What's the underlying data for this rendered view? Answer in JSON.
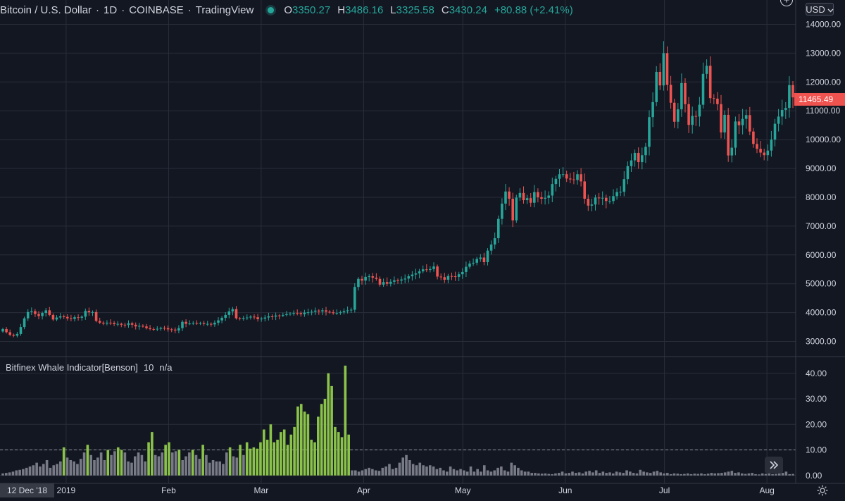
{
  "header": {
    "symbol": "Bitcoin / U.S. Dollar",
    "interval": "1D",
    "exchange": "COINBASE",
    "source": "TradingView",
    "ohlc": {
      "o_label": "O",
      "o_value": "3350.27",
      "h_label": "H",
      "h_value": "3486.16",
      "l_label": "L",
      "l_value": "3325.58",
      "c_label": "C",
      "c_value": "3430.24",
      "change": "+80.88 (+2.41%)"
    }
  },
  "currency_button": {
    "label": "USD",
    "icon": "chevron-down-icon"
  },
  "plus_button": {
    "icon": "plus-icon"
  },
  "indicator": {
    "name": "Bitfinex Whale Indicator[Benson]",
    "param": "10",
    "value": "n/a"
  },
  "last_price_tag": "11465.49",
  "crosshair_date": "12 Dec '18",
  "colors": {
    "up": "#26a69a",
    "down": "#ef5350",
    "background": "#131722",
    "grid": "#2a2e39",
    "vol_gray": "#787b86",
    "vol_green": "#8bc34a"
  },
  "chart_data": [
    {
      "type": "candlestick",
      "title": "Bitcoin / U.S. Dollar",
      "ylim": [
        2500,
        14500
      ],
      "yticks": [
        3000,
        4000,
        5000,
        6000,
        7000,
        8000,
        9000,
        10000,
        11000,
        12000,
        13000,
        14000
      ],
      "ytick_labels": [
        "3000.00",
        "4000.00",
        "5000.00",
        "6000.00",
        "7000.00",
        "8000.00",
        "9000.00",
        "10000.00",
        "11000.00",
        "12000.00",
        "13000.00",
        "14000.00"
      ],
      "x_start": "2018-12-12",
      "x_end": "2019-08-08",
      "xtick_labels": [
        {
          "date": "2019-01-01",
          "label": "2019"
        },
        {
          "date": "2019-02-01",
          "label": "Feb"
        },
        {
          "date": "2019-03-01",
          "label": "Mar"
        },
        {
          "date": "2019-04-01",
          "label": "Apr"
        },
        {
          "date": "2019-05-01",
          "label": "May"
        },
        {
          "date": "2019-06-01",
          "label": "Jun"
        },
        {
          "date": "2019-07-01",
          "label": "Jul"
        },
        {
          "date": "2019-08-01",
          "label": "Aug"
        }
      ],
      "close_series": [
        3430,
        3320,
        3230,
        3200,
        3260,
        3500,
        3800,
        4020,
        4050,
        3950,
        3880,
        3990,
        4080,
        3920,
        3760,
        3830,
        3870,
        3850,
        3800,
        3780,
        3840,
        3820,
        3860,
        4060,
        4010,
        4020,
        3710,
        3650,
        3620,
        3650,
        3640,
        3600,
        3610,
        3580,
        3570,
        3630,
        3580,
        3520,
        3540,
        3520,
        3460,
        3430,
        3420,
        3440,
        3470,
        3460,
        3420,
        3410,
        3380,
        3460,
        3680,
        3610,
        3620,
        3640,
        3630,
        3640,
        3610,
        3610,
        3590,
        3650,
        3730,
        3820,
        3920,
        4040,
        4120,
        3800,
        3780,
        3810,
        3830,
        3860,
        3840,
        3770,
        3790,
        3830,
        3870,
        3860,
        3900,
        3890,
        3920,
        3950,
        3960,
        3990,
        3980,
        3940,
        4000,
        4010,
        4030,
        4070,
        4040,
        4080,
        4030,
        4010,
        3980,
        3990,
        4010,
        4050,
        4080,
        4100,
        4890,
        5170,
        5110,
        5240,
        5260,
        5210,
        5170,
        4970,
        5060,
        5000,
        5070,
        5120,
        5110,
        5150,
        5180,
        5260,
        5320,
        5360,
        5430,
        5500,
        5480,
        5510,
        5600,
        5250,
        5230,
        5140,
        5270,
        5260,
        5240,
        5330,
        5410,
        5590,
        5700,
        5730,
        5860,
        5910,
        5750,
        6150,
        6360,
        6580,
        7250,
        7780,
        8200,
        7950,
        7200,
        7990,
        8150,
        7900,
        7970,
        7810,
        8180,
        8000,
        7950,
        7980,
        8060,
        8460,
        8640,
        8800,
        8800,
        8650,
        8620,
        8600,
        8800,
        8550,
        7950,
        7710,
        7750,
        7990,
        7970,
        7980,
        7870,
        7870,
        8040,
        8180,
        8190,
        8630,
        9080,
        9280,
        9540,
        9220,
        9460,
        9750,
        10780,
        11300,
        12350,
        11880,
        13000,
        11900,
        11280,
        10620,
        11050,
        11960,
        11230,
        10510,
        10820,
        10800,
        11210,
        12280,
        12560,
        11440,
        11420,
        11230,
        10250,
        10860,
        9450,
        9720,
        10630,
        10500,
        10720,
        10850,
        10280,
        9850,
        9680,
        9550,
        9460,
        9620,
        10000,
        10550,
        10800,
        11030,
        11100,
        11890,
        11465
      ]
    },
    {
      "type": "bar",
      "title": "Bitfinex Whale Indicator[Benson]",
      "ylim": [
        -2,
        46
      ],
      "yticks": [
        0,
        10,
        20,
        30,
        40
      ],
      "ytick_labels": [
        "0.00",
        "10.00",
        "20.00",
        "30.00",
        "40.00"
      ],
      "threshold": 10,
      "values": [
        0.8,
        1,
        1.2,
        1.5,
        2,
        2.2,
        2.5,
        3,
        3.5,
        4,
        5,
        3.5,
        4.5,
        6,
        3,
        4,
        4.5,
        5.5,
        11,
        7,
        6,
        5.5,
        4.5,
        6.5,
        9,
        12,
        8,
        6,
        7,
        9,
        6,
        10,
        8,
        9.5,
        11,
        10,
        9,
        5.5,
        5,
        7.5,
        9,
        8,
        5.5,
        13,
        17,
        8,
        7.5,
        9,
        12,
        13,
        9,
        9.5,
        10,
        6,
        7.5,
        9,
        10,
        8,
        6.5,
        12,
        8,
        5,
        6,
        5.5,
        5.5,
        4.5,
        9,
        11,
        7.5,
        7,
        12,
        8,
        13,
        10.5,
        11,
        10.5,
        13,
        18,
        14,
        20,
        13,
        14,
        17,
        18,
        12,
        16,
        19,
        27,
        28,
        25,
        24,
        14,
        13,
        23,
        28,
        30,
        40,
        35,
        19,
        17,
        15,
        43,
        16,
        2,
        2,
        1.5,
        2,
        2.5,
        3,
        2.5,
        2,
        1.8,
        3,
        3.5,
        4.5,
        2.5,
        3,
        5,
        7,
        8,
        6,
        4.5,
        4,
        5,
        4,
        3.5,
        4,
        3.5,
        2.5,
        3,
        2,
        1.5,
        3.5,
        2.5,
        2,
        2.5,
        2,
        1.5,
        3.5,
        1.5,
        2.5,
        1.5,
        4,
        2,
        1.5,
        2,
        3,
        3.5,
        2,
        1.5,
        5,
        4,
        3,
        2,
        1.5,
        1.5,
        1,
        1,
        0.8,
        0.7,
        0.8,
        0.6,
        0.5,
        0.8,
        1,
        1.5,
        0.8,
        1,
        1.5,
        1,
        1.2,
        0.8,
        1.5,
        1.8,
        1.2,
        2,
        1,
        1.5,
        1,
        1.2,
        0.8,
        1.5,
        1.2,
        1,
        2,
        1.5,
        1,
        0.8,
        2.2,
        1.5,
        1.2,
        1,
        1.5,
        1.8,
        1.2,
        0.8,
        1,
        0.5,
        0.8,
        0.7,
        0.5,
        0.6,
        0.8,
        0.5,
        0.7,
        0.6,
        0.8,
        0.5,
        0.7,
        1,
        0.8,
        0.9,
        1,
        1.2,
        1.5,
        1.8,
        1,
        1.2,
        0.8,
        0.6,
        0.8,
        1,
        0.5,
        0.4,
        0.8,
        0.6,
        0.9,
        0.5,
        0.6,
        0.8,
        1,
        1.5,
        0.5,
        0.6
      ]
    }
  ]
}
